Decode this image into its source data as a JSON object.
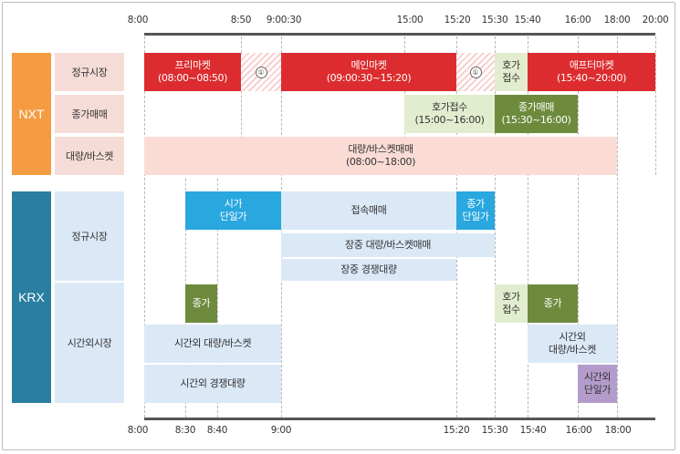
{
  "top_axis": {
    "ticks": [
      "8:00",
      "8:50",
      "9:00:30",
      "15:00",
      "15:20",
      "15:30",
      "15:40",
      "16:00",
      "18:00",
      "20:00"
    ]
  },
  "bottom_axis": {
    "ticks": [
      "8:00",
      "8:30",
      "8:40",
      "9:00",
      "15:20",
      "15:30",
      "15:40",
      "16:00",
      "18:00"
    ]
  },
  "nxt": {
    "label": "NXT",
    "color": "#f59b42",
    "rows": {
      "regular": "정규시장",
      "closing": "종가매매",
      "block": "대량/바스켓"
    },
    "bars": {
      "pre_market": "프리마켓\n(08:00~08:50)",
      "gap1_marker": "①",
      "main_market": "메인마켓\n(09:00:30~15:20)",
      "gap2_marker": "①",
      "auction": "호가\n접수",
      "after_market": "애프터마켓\n(15:40~20:00)",
      "closing_order": "호가접수\n(15:00~16:00)",
      "closing_trade": "종가매매\n(15:30~16:00)",
      "block_trade": "대량/바스켓매매\n(08:00~18:00)"
    }
  },
  "krx": {
    "label": "KRX",
    "color": "#2a7fa0",
    "rows": {
      "regular": "정규시장",
      "after_hours": "시간외시장"
    },
    "bars": {
      "open_single": "시가\n단일가",
      "continuous": "접속매매",
      "close_single": "종가\n단일가",
      "intraday_block": "장중 대량/바스켓매매",
      "intraday_competitive": "장중 경쟁대량",
      "pre_closing": "종가",
      "after_auction": "호가\n접수",
      "after_closing": "종가",
      "pre_block": "시간외 대량/바스켓",
      "pre_competitive": "시간외 경쟁대량",
      "post_block": "시간외\n대량/바스켓",
      "post_single": "시간외\n단일가"
    }
  },
  "colors": {
    "red": "#dd2c2f",
    "light_green": "#e2edcf",
    "dark_green": "#6e8b3d",
    "pink": "#fadcd5",
    "blue": "#29a7df",
    "light_blue": "#dbe9f7",
    "purple": "#b39ccb"
  }
}
